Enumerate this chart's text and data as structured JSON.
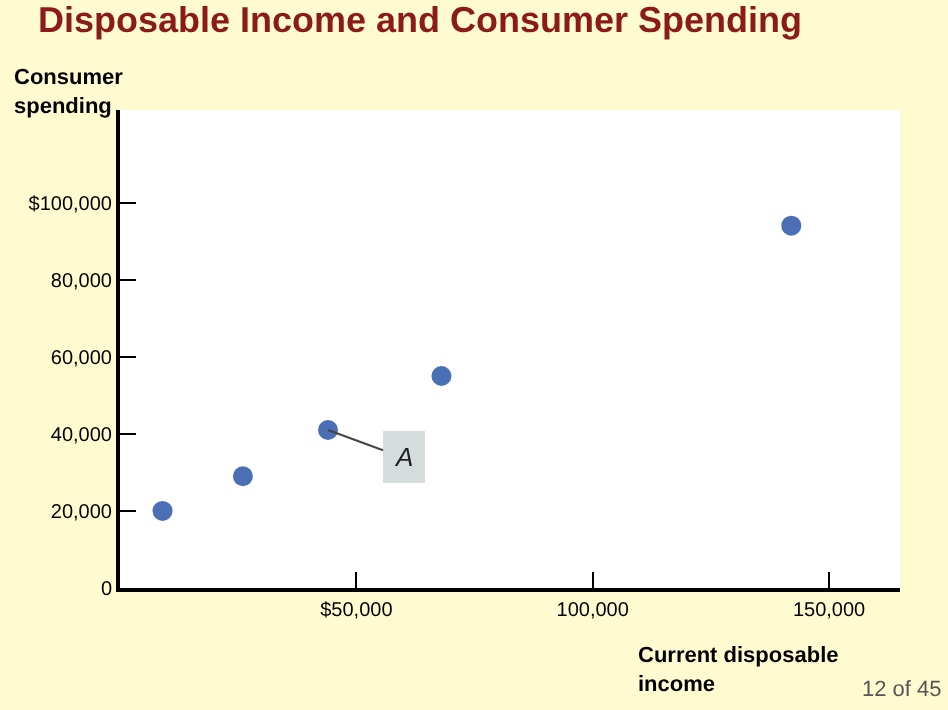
{
  "chart_data": {
    "type": "scatter",
    "title": "Disposable Income and Consumer Spending",
    "xlabel": "Current disposable income",
    "ylabel": "Consumer spending",
    "x": [
      9000,
      26000,
      44000,
      68000,
      142000
    ],
    "series": [
      {
        "color": "#4a6fb5",
        "values": [
          20000,
          29000,
          41000,
          55000,
          94000
        ]
      }
    ],
    "marker": "circle",
    "xlim": [
      0,
      165000
    ],
    "xticks": [
      {
        "value": 0,
        "label": null
      },
      {
        "value": 50000,
        "label": "$50,000"
      },
      {
        "value": 100000,
        "label": "100,000"
      },
      {
        "value": 150000,
        "label": "150,000"
      }
    ],
    "ylim": [
      0,
      124000
    ],
    "yticks": [
      {
        "value": 0,
        "label": "0"
      },
      {
        "value": 20000,
        "label": "20,000"
      },
      {
        "value": 40000,
        "label": "40,000"
      },
      {
        "value": 60000,
        "label": "60,000"
      },
      {
        "value": 80000,
        "label": "80,000"
      },
      {
        "value": 100000,
        "label": "$100,000"
      }
    ],
    "grid": false,
    "legend": false,
    "annotations": [
      {
        "text": "A",
        "x": 44000,
        "y": 41000
      },
      "12 of 45"
    ]
  }
}
